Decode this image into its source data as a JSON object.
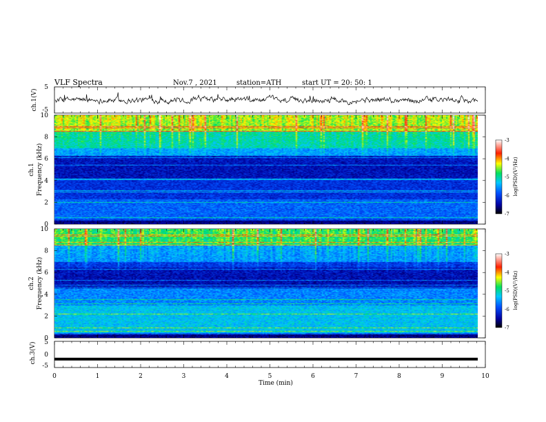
{
  "header": {
    "title": "VLF  Spectra",
    "date": "Nov.7  , 2021",
    "station": "station=ATH",
    "start": "start  UT  =   20: 50: 1"
  },
  "chart_data": [
    {
      "type": "line",
      "name": "ch1-waveform",
      "ylabel": "ch.1(V)",
      "ylim": [
        -5,
        5
      ],
      "yticks": [
        "5",
        "-5"
      ],
      "xlim": [
        0,
        10
      ],
      "approx_level": 0,
      "approx_amplitude": 1
    },
    {
      "type": "heatmap",
      "name": "ch1-spectrogram",
      "ylabel": "ch.1\nFrequency (kHz)",
      "ylabel_lines": [
        "ch.1",
        "Frequency (kHz)"
      ],
      "ylim": [
        0,
        10
      ],
      "yticks": [
        "0",
        "2",
        "4",
        "6",
        "8",
        "10"
      ],
      "xlim": [
        0,
        9.8
      ],
      "colorbar": {
        "label": "log(PSD)(V²/Hz)",
        "range": [
          -7,
          -3
        ],
        "ticks": [
          "-3",
          "-4",
          "-5",
          "-6",
          "-7"
        ]
      }
    },
    {
      "type": "heatmap",
      "name": "ch2-spectrogram",
      "ylabel": "ch.2\nFrequency (kHz)",
      "ylabel_lines": [
        "ch.2",
        "Frequency (kHz)"
      ],
      "ylim": [
        0,
        10
      ],
      "yticks": [
        "0",
        "2",
        "4",
        "6",
        "8",
        "10"
      ],
      "xlim": [
        0,
        9.8
      ],
      "colorbar": {
        "label": "log(PSD)(V²/Hz)",
        "range": [
          -7,
          -3
        ],
        "ticks": [
          "-3",
          "-4",
          "-5",
          "-6",
          "-7"
        ]
      }
    },
    {
      "type": "line",
      "name": "ch3-waveform",
      "ylabel": "ch.3(V)",
      "ylim": [
        -5,
        5
      ],
      "yticks": [
        "5",
        "0",
        "-5"
      ],
      "xlim": [
        0,
        10
      ],
      "approx_level": -1.8,
      "approx_amplitude": 0.1
    }
  ],
  "xaxis": {
    "label": "Time  (min)",
    "ticks": [
      "0",
      "1",
      "2",
      "3",
      "4",
      "5",
      "6",
      "7",
      "8",
      "9",
      "10"
    ]
  }
}
